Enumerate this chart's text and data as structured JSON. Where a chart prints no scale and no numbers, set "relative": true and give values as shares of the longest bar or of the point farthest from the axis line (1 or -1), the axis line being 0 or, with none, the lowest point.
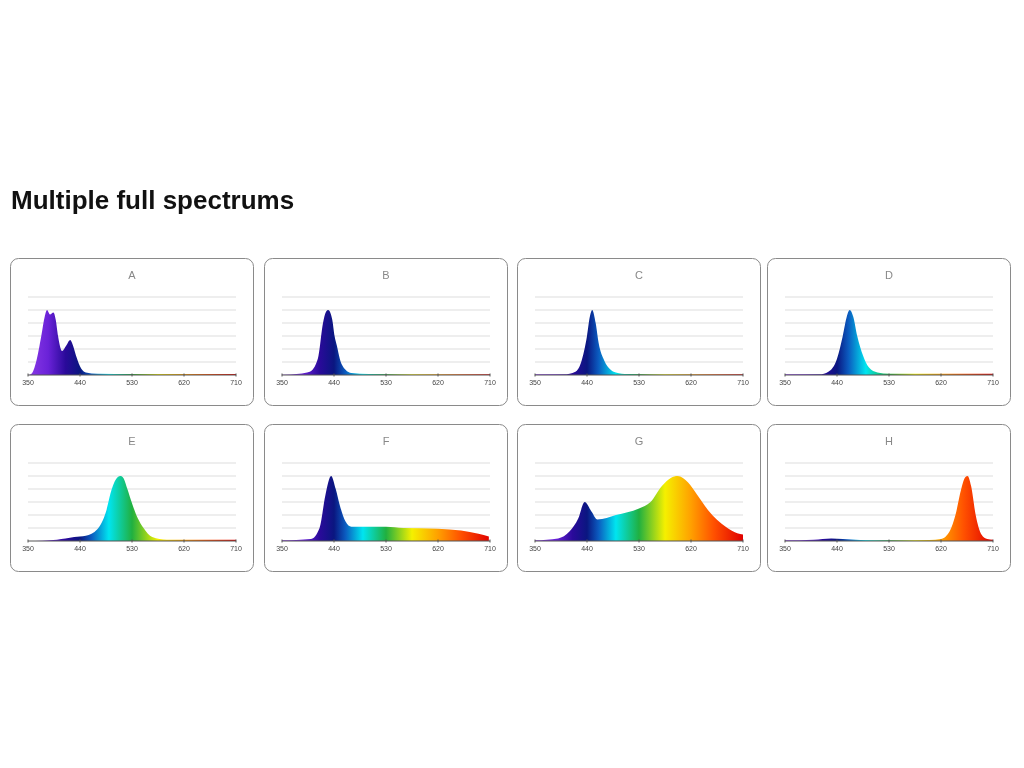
{
  "chart_data": [
    {
      "type": "area",
      "title": "A",
      "relative": true,
      "grid": "y",
      "xlim": [
        350,
        710
      ],
      "xticks": [
        350,
        440,
        530,
        620,
        710
      ],
      "annotations": [
        "Multiple full spectrums"
      ],
      "series": [
        {
          "x": [
            350,
            356,
            364,
            373,
            379,
            383,
            388,
            394,
            398,
            402,
            409,
            416,
            423,
            428,
            433,
            442,
            450,
            470,
            530,
            620,
            710
          ],
          "values": [
            0,
            0.02,
            0.2,
            0.6,
            0.9,
            1,
            0.93,
            0.96,
            0.85,
            0.6,
            0.37,
            0.45,
            0.54,
            0.45,
            0.3,
            0.1,
            0.04,
            0.02,
            0.015,
            0.015,
            0.015
          ]
        }
      ]
    },
    {
      "type": "area",
      "title": "B",
      "relative": true,
      "grid": "y",
      "xlim": [
        350,
        710
      ],
      "xticks": [
        350,
        440,
        530,
        620,
        710
      ],
      "series": [
        {
          "x": [
            350,
            380,
            398,
            412,
            421,
            426,
            430,
            434,
            437,
            441,
            445,
            450,
            460,
            470,
            500,
            600,
            710
          ],
          "values": [
            0.005,
            0.02,
            0.05,
            0.25,
            0.8,
            0.97,
            1,
            0.95,
            0.85,
            0.6,
            0.45,
            0.25,
            0.08,
            0.03,
            0.015,
            0.01,
            0.01
          ]
        }
      ]
    },
    {
      "type": "area",
      "title": "C",
      "relative": true,
      "grid": "y",
      "xlim": [
        350,
        710
      ],
      "xticks": [
        350,
        440,
        530,
        620,
        710
      ],
      "series": [
        {
          "x": [
            350,
            400,
            420,
            430,
            440,
            445,
            449,
            455,
            460,
            470,
            480,
            490,
            510,
            600,
            710
          ],
          "values": [
            0.01,
            0.01,
            0.05,
            0.2,
            0.6,
            0.9,
            1,
            0.8,
            0.5,
            0.22,
            0.09,
            0.04,
            0.015,
            0.01,
            0.01
          ]
        }
      ]
    },
    {
      "type": "area",
      "title": "D",
      "relative": true,
      "grid": "y",
      "xlim": [
        350,
        710
      ],
      "xticks": [
        350,
        440,
        530,
        620,
        710
      ],
      "series": [
        {
          "x": [
            350,
            410,
            425,
            440,
            450,
            457,
            462,
            468,
            475,
            485,
            495,
            510,
            530,
            620,
            710
          ],
          "values": [
            0.01,
            0.01,
            0.05,
            0.25,
            0.6,
            0.9,
            1,
            0.9,
            0.6,
            0.3,
            0.12,
            0.04,
            0.02,
            0.02,
            0.02
          ]
        }
      ]
    },
    {
      "type": "area",
      "title": "E",
      "relative": true,
      "grid": "y",
      "xlim": [
        350,
        710
      ],
      "xticks": [
        350,
        440,
        530,
        620,
        710
      ],
      "series": [
        {
          "x": [
            350,
            400,
            430,
            450,
            470,
            485,
            495,
            505,
            510,
            515,
            522,
            530,
            540,
            550,
            565,
            590,
            710
          ],
          "values": [
            0,
            0.02,
            0.06,
            0.08,
            0.18,
            0.45,
            0.8,
            0.98,
            1,
            0.97,
            0.8,
            0.58,
            0.35,
            0.2,
            0.06,
            0.02,
            0.02
          ]
        }
      ]
    },
    {
      "type": "area",
      "title": "F",
      "relative": true,
      "grid": "y",
      "xlim": [
        350,
        710
      ],
      "xticks": [
        350,
        440,
        530,
        620,
        710
      ],
      "series": [
        {
          "x": [
            350,
            400,
            415,
            425,
            435,
            443,
            450,
            460,
            470,
            530,
            560,
            620,
            660,
            690,
            708
          ],
          "values": [
            0.01,
            0.03,
            0.2,
            0.7,
            1,
            0.8,
            0.55,
            0.3,
            0.22,
            0.22,
            0.2,
            0.19,
            0.16,
            0.11,
            0.07
          ]
        }
      ]
    },
    {
      "type": "area",
      "title": "G",
      "relative": true,
      "grid": "y",
      "xlim": [
        350,
        710
      ],
      "xticks": [
        350,
        440,
        530,
        620,
        710
      ],
      "series": [
        {
          "x": [
            350,
            390,
            410,
            425,
            436,
            448,
            458,
            490,
            530,
            550,
            570,
            585,
            597,
            615,
            630,
            650,
            680,
            700,
            710
          ],
          "values": [
            0.01,
            0.04,
            0.15,
            0.35,
            0.6,
            0.45,
            0.33,
            0.4,
            0.5,
            0.6,
            0.85,
            0.97,
            1,
            0.9,
            0.72,
            0.47,
            0.22,
            0.12,
            0.1
          ]
        }
      ]
    },
    {
      "type": "area",
      "title": "H",
      "relative": true,
      "grid": "y",
      "xlim": [
        350,
        710
      ],
      "xticks": [
        350,
        440,
        530,
        620,
        710
      ],
      "series": [
        {
          "x": [
            350,
            400,
            430,
            450,
            480,
            530,
            600,
            620,
            635,
            645,
            655,
            662,
            666,
            672,
            680,
            690,
            700,
            710
          ],
          "values": [
            0.01,
            0.02,
            0.04,
            0.03,
            0.015,
            0.01,
            0.015,
            0.03,
            0.15,
            0.4,
            0.8,
            0.98,
            1,
            0.85,
            0.4,
            0.1,
            0.03,
            0.02
          ]
        }
      ]
    }
  ]
}
